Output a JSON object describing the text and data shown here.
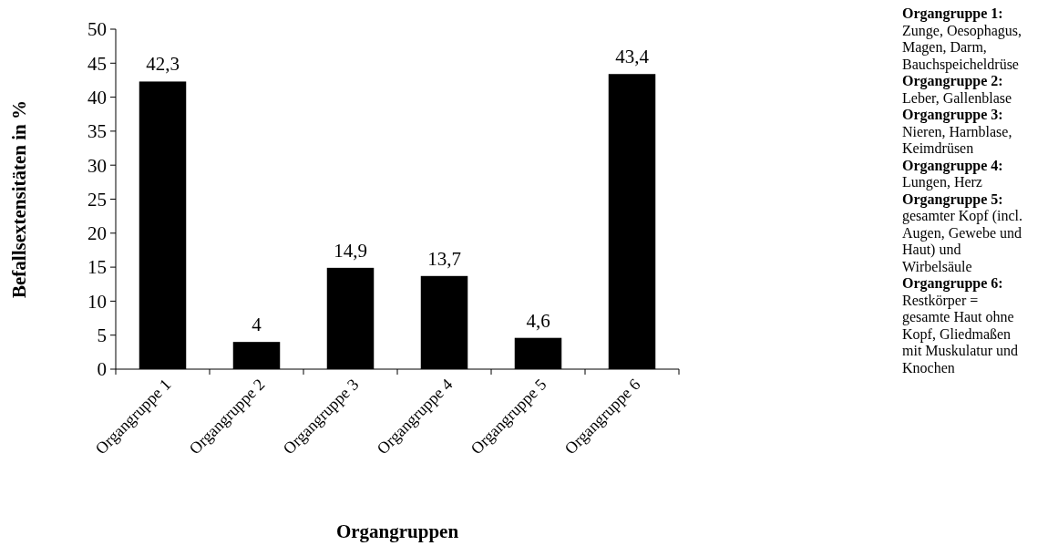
{
  "chart_data": {
    "type": "bar",
    "categories": [
      "Organgruppe 1",
      "Organgruppe 2",
      "Organgruppe 3",
      "Organgruppe 4",
      "Organgruppe 5",
      "Organgruppe 6"
    ],
    "values": [
      42.3,
      4,
      14.9,
      13.7,
      4.6,
      43.4
    ],
    "value_labels": [
      "42,3",
      "4",
      "14,9",
      "13,7",
      "4,6",
      "43,4"
    ],
    "color": "#000000",
    "ylim": [
      0,
      50
    ],
    "yticks": [
      0,
      5,
      10,
      15,
      20,
      25,
      30,
      35,
      40,
      45,
      50
    ],
    "grid": false,
    "xlabel": "Organgruppen",
    "ylabel": "Befallsextensitäten in %",
    "annotations": [
      "Organgruppe 1: Zunge, Oesophagus, Magen, Darm, Bauchspeicheldrüse",
      "Organgruppe 2: Leber, Gallenblase",
      "Organgruppe 3: Nieren, Harnblase, Keimdrüsen",
      "Organgruppe 4: Lungen, Herz",
      "Organgruppe 5: gesamter Kopf (incl. Augen, Gewebe und Haut) und Wirbelsäule",
      "Organgruppe 6: Restkörper = gesamte Haut ohne Kopf, Gliedmaßen mit Muskulatur und Knochen"
    ]
  }
}
